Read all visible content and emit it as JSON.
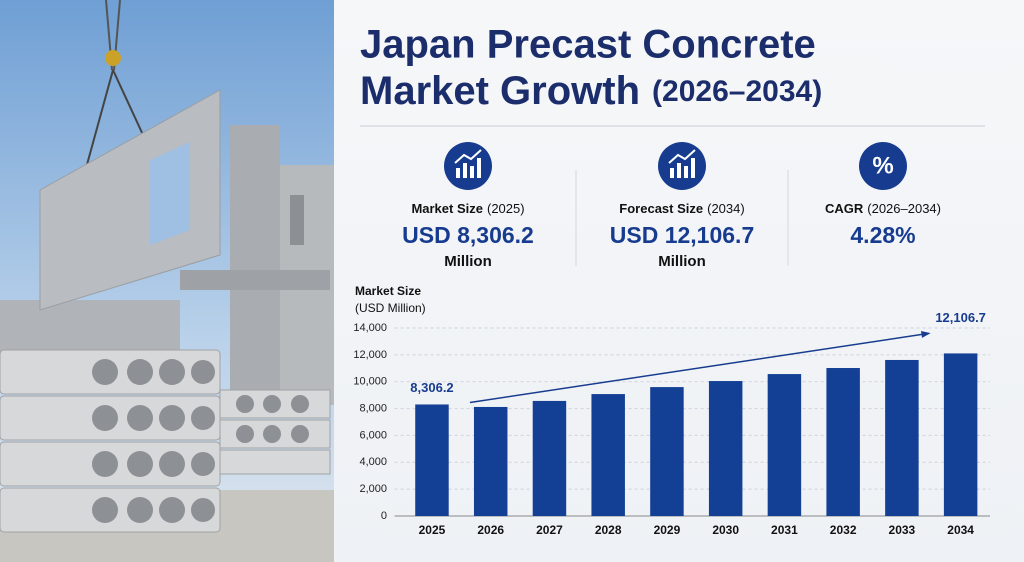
{
  "header": {
    "title": [
      "Japan Precast Concrete",
      "Market Growth"
    ],
    "subtitle": "(2026–2034)"
  },
  "stats": [
    {
      "label": "Market Size",
      "period": "(2025)",
      "value": "USD 8,306.2",
      "unit": "Million"
    },
    {
      "label": "Forecast Size",
      "period": "(2034)",
      "value": "USD 12,106.7",
      "unit": "Million"
    },
    {
      "icon": "%",
      "label": "CAGR",
      "period": "(2026–2034)",
      "value": "4.28%"
    }
  ],
  "chart_data": {
    "type": "bar",
    "ylabel": "Market Size",
    "ylabel_unit": "(USD Million)",
    "categories": [
      "2025",
      "2026",
      "2027",
      "2028",
      "2029",
      "2030",
      "2031",
      "2032",
      "2033",
      "2034"
    ],
    "values": [
      8306.2,
      8120,
      8570,
      9080,
      9600,
      10050,
      10570,
      11020,
      11620,
      12106.7
    ],
    "value_labels": [
      "8,306.2",
      null,
      null,
      null,
      null,
      null,
      null,
      null,
      null,
      "12,106.7"
    ],
    "color": "#133f94",
    "ylim": [
      0,
      14000
    ],
    "yticks": [
      0,
      {
        "value": 2000,
        "label": "2,000"
      },
      {
        "value": 4000,
        "label": "4,000"
      },
      {
        "value": 6000,
        "label": "6,000"
      },
      {
        "value": 8000,
        "label": "8,000"
      },
      {
        "value": 10000,
        "label": "10,000"
      },
      {
        "value": 12000,
        "label": "12,000"
      },
      {
        "value": 14000,
        "label": "14,000"
      }
    ],
    "grid": true
  }
}
